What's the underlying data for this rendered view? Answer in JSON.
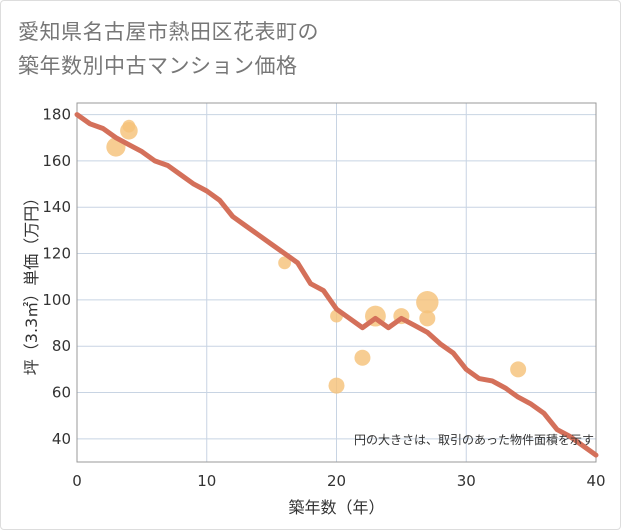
{
  "chart_data": {
    "type": "scatter+line",
    "title_line1": "愛知県名古屋市熱田区花表町の",
    "title_line2": "築年数別中古マンション価格",
    "xlabel": "築年数（年）",
    "ylabel": "坪（3.3㎡）単価（万円）",
    "xlim": [
      0,
      40
    ],
    "ylim": [
      30,
      185
    ],
    "x_ticks": [
      0,
      10,
      20,
      30,
      40
    ],
    "y_ticks": [
      40,
      60,
      80,
      100,
      120,
      140,
      160,
      180
    ],
    "note": "円の大きさは、取引のあった物件面積を示す",
    "colors": {
      "line": "#d4705a",
      "bubble": "#f5c27a",
      "grid": "#c8d4e3",
      "plot_border": "#999999"
    },
    "line_series": {
      "x": [
        0,
        1,
        2,
        3,
        4,
        5,
        6,
        7,
        8,
        9,
        10,
        11,
        12,
        13,
        14,
        15,
        16,
        17,
        18,
        19,
        20,
        21,
        22,
        23,
        24,
        25,
        26,
        27,
        28,
        29,
        30,
        31,
        32,
        33,
        34,
        35,
        36,
        37,
        38,
        39,
        40
      ],
      "y": [
        180,
        176,
        174,
        170,
        167,
        164,
        160,
        158,
        154,
        150,
        147,
        143,
        136,
        132,
        128,
        124,
        120,
        116,
        107,
        104,
        96,
        92,
        88,
        92,
        88,
        92,
        89,
        86,
        81,
        77,
        70,
        66,
        65,
        62,
        58,
        55,
        51,
        44,
        41,
        37,
        33
      ]
    },
    "bubbles": [
      {
        "x": 3,
        "y": 166,
        "size": 1.2
      },
      {
        "x": 4,
        "y": 173,
        "size": 1.1
      },
      {
        "x": 4,
        "y": 175,
        "size": 0.8
      },
      {
        "x": 16,
        "y": 116,
        "size": 0.8
      },
      {
        "x": 20,
        "y": 93,
        "size": 0.8
      },
      {
        "x": 20,
        "y": 63,
        "size": 1.0
      },
      {
        "x": 22,
        "y": 75,
        "size": 1.0
      },
      {
        "x": 23,
        "y": 93,
        "size": 1.3
      },
      {
        "x": 25,
        "y": 93,
        "size": 1.0
      },
      {
        "x": 27,
        "y": 99,
        "size": 1.4
      },
      {
        "x": 27,
        "y": 92,
        "size": 1.0
      },
      {
        "x": 34,
        "y": 70,
        "size": 1.0
      }
    ]
  }
}
